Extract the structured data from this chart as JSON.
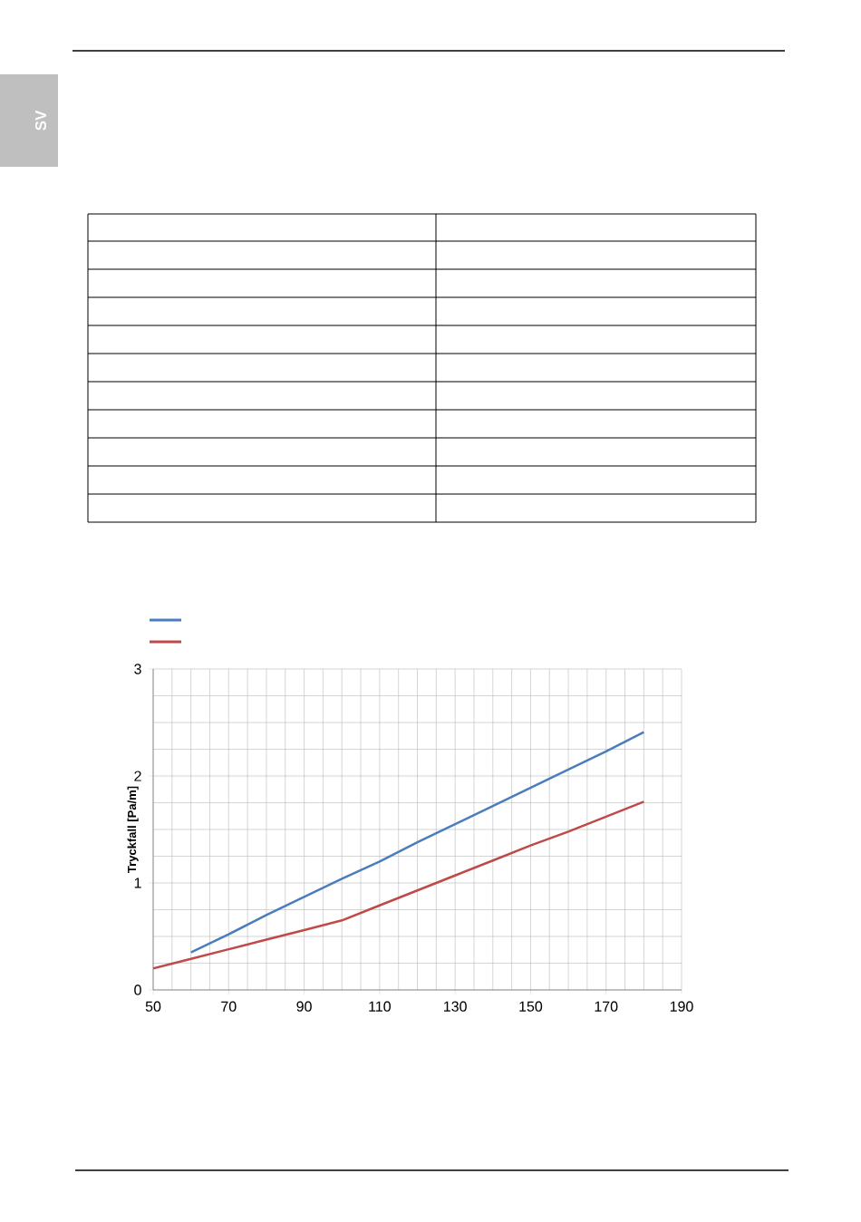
{
  "chart_data": {
    "type": "line",
    "ylabel": "Tryckfall [Pa/m]",
    "annotations": [
      "SV"
    ],
    "xlim": [
      50,
      190
    ],
    "xticks": [
      50,
      70,
      90,
      110,
      130,
      150,
      170,
      190
    ],
    "ylim": [
      0,
      3
    ],
    "yticks": [
      0,
      1,
      2,
      3
    ],
    "grid": true,
    "marker": "none",
    "line_style": "solid",
    "series": [
      {
        "color": "#4a7ebb",
        "x": [
          60,
          70,
          80,
          90,
          100,
          110,
          120,
          130,
          140,
          150,
          160,
          170,
          180
        ],
        "values": [
          0.35,
          0.52,
          0.7,
          0.87,
          1.04,
          1.2,
          1.38,
          1.55,
          1.72,
          1.89,
          2.06,
          2.23,
          2.41
        ]
      },
      {
        "color": "#be4b48",
        "x": [
          50,
          60,
          70,
          80,
          90,
          100,
          110,
          120,
          130,
          140,
          150,
          160,
          170,
          180
        ],
        "values": [
          0.2,
          0.29,
          0.38,
          0.47,
          0.56,
          0.65,
          0.79,
          0.93,
          1.07,
          1.21,
          1.35,
          1.48,
          1.62,
          1.76
        ]
      }
    ]
  }
}
